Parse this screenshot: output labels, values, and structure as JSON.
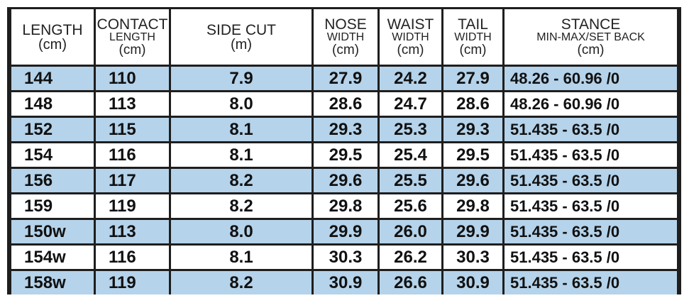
{
  "table": {
    "header": [
      [
        "LENGTH",
        "(cm)"
      ],
      [
        "CONTACT",
        "LENGTH",
        "(cm)"
      ],
      [
        "SIDE CUT",
        "(m)"
      ],
      [
        "NOSE",
        "WIDTH",
        "(cm)"
      ],
      [
        "WAIST",
        "WIDTH",
        "(cm)"
      ],
      [
        "TAIL",
        "WIDTH",
        "(cm)"
      ],
      [
        "STANCE",
        "MIN-MAX/SET BACK",
        "(cm)"
      ]
    ],
    "rows": [
      [
        "144",
        "110",
        "7.9",
        "27.9",
        "24.2",
        "27.9",
        "48.26 - 60.96 /0"
      ],
      [
        "148",
        "113",
        "8.0",
        "28.6",
        "24.7",
        "28.6",
        "48.26 - 60.96 /0"
      ],
      [
        "152",
        "115",
        "8.1",
        "29.3",
        "25.3",
        "29.3",
        "51.435 - 63.5 /0"
      ],
      [
        "154",
        "116",
        "8.1",
        "29.5",
        "25.4",
        "29.5",
        "51.435 - 63.5 /0"
      ],
      [
        "156",
        "117",
        "8.2",
        "29.6",
        "25.5",
        "29.6",
        "51.435 - 63.5 /0"
      ],
      [
        "159",
        "119",
        "8.2",
        "29.8",
        "25.6",
        "29.8",
        "51.435 - 63.5 /0"
      ],
      [
        "150w",
        "113",
        "8.0",
        "29.9",
        "26.0",
        "29.9",
        "51.435 - 63.5 /0"
      ],
      [
        "154w",
        "116",
        "8.1",
        "30.3",
        "26.2",
        "30.3",
        "51.435 - 63.5 /0"
      ],
      [
        "158w",
        "119",
        "8.2",
        "30.9",
        "26.6",
        "30.9",
        "51.435 - 63.5 /0"
      ]
    ]
  }
}
